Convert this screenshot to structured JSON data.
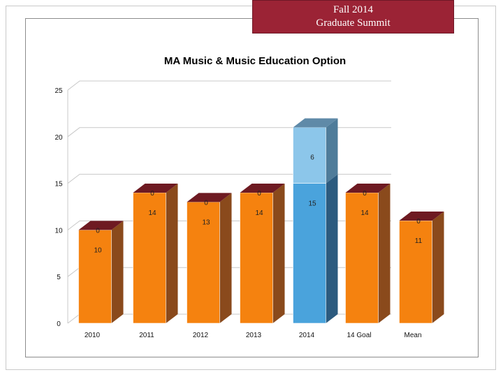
{
  "banner": {
    "line1": "Fall 2014",
    "line2": "Graduate Summit"
  },
  "colors": {
    "orange_front": "#f5820f",
    "orange_side": "#8a4a1c",
    "orange_top_cap": "#6e1a22",
    "blue_front_lower": "#4aa3dc",
    "blue_side_lower": "#2c5b7f",
    "blue_front_upper": "#8cc6ea",
    "blue_side_upper": "#4f7c9a",
    "blue_top": "#5f8aa8",
    "gridline": "#c8c8c8",
    "banner_bg": "#9b2335"
  },
  "chart_data": {
    "type": "bar",
    "stacked": true,
    "title": "MA Music & Music Education Option",
    "xlabel": "",
    "ylabel": "",
    "ylim": [
      0,
      25
    ],
    "yticks": [
      0,
      5,
      10,
      15,
      20,
      25
    ],
    "grid": true,
    "legend": "none",
    "categories": [
      "2010",
      "2011",
      "2012",
      "2013",
      "2014",
      "14 Goal",
      "Mean"
    ],
    "series": [
      {
        "values": [
          10,
          14,
          13,
          14,
          15,
          14,
          11
        ],
        "labels": [
          "10",
          "14",
          "13",
          "14",
          "15",
          "14",
          "11"
        ]
      },
      {
        "values": [
          0,
          0,
          0,
          0,
          6,
          0,
          0
        ],
        "labels": [
          "0",
          "0",
          "0",
          "0",
          "6",
          "0",
          "0"
        ]
      }
    ],
    "highlight_category": "2014"
  }
}
